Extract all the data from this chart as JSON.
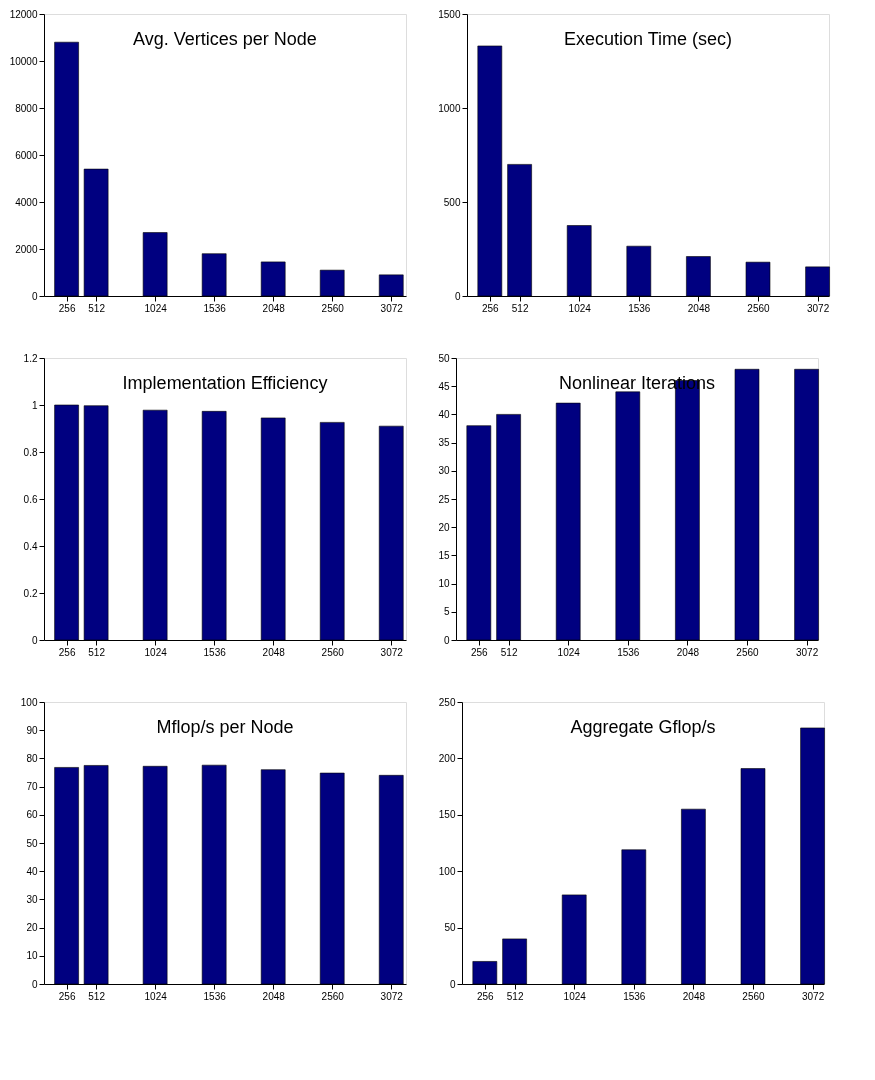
{
  "chart_data": [
    {
      "type": "bar",
      "title": "Avg. Vertices per Node",
      "x": [
        256,
        512,
        1024,
        1536,
        2048,
        2560,
        3072
      ],
      "values": [
        10800,
        5400,
        2700,
        1800,
        1450,
        1100,
        900
      ],
      "color": "#000080",
      "xlim": [
        60,
        3200
      ],
      "xticks": [
        256,
        512,
        1024,
        1536,
        2048,
        2560,
        3072
      ],
      "ylim": [
        0,
        12000
      ],
      "yticks": [
        0,
        2000,
        4000,
        6000,
        8000,
        10000,
        12000
      ],
      "grid": false
    },
    {
      "type": "bar",
      "title": "Execution Time (sec)",
      "x": [
        256,
        512,
        1024,
        1536,
        2048,
        2560,
        3072
      ],
      "values": [
        1330,
        700,
        375,
        265,
        210,
        180,
        155
      ],
      "color": "#000080",
      "xlim": [
        60,
        3170
      ],
      "xticks": [
        256,
        512,
        1024,
        1536,
        2048,
        2560,
        3072
      ],
      "ylim": [
        0,
        1500
      ],
      "yticks": [
        0,
        500,
        1000,
        1500
      ],
      "grid": false
    },
    {
      "type": "bar",
      "title": "Implementation Efficiency",
      "x": [
        256,
        512,
        1024,
        1536,
        2048,
        2560,
        3072
      ],
      "values": [
        1.0,
        0.997,
        0.978,
        0.973,
        0.945,
        0.926,
        0.91
      ],
      "color": "#000080",
      "xlim": [
        60,
        3200
      ],
      "xticks": [
        256,
        512,
        1024,
        1536,
        2048,
        2560,
        3072
      ],
      "ylim": [
        0,
        1.2
      ],
      "yticks": [
        0,
        0.2,
        0.4,
        0.6,
        0.8,
        1,
        1.2
      ],
      "grid": false
    },
    {
      "type": "bar",
      "title": "Nonlinear Iterations",
      "x": [
        256,
        512,
        1024,
        1536,
        2048,
        2560,
        3072
      ],
      "values": [
        38,
        40,
        42,
        44,
        46,
        48,
        48
      ],
      "color": "#000080",
      "xlim": [
        60,
        3170
      ],
      "xticks": [
        256,
        512,
        1024,
        1536,
        2048,
        2560,
        3072
      ],
      "ylim": [
        0,
        50
      ],
      "yticks": [
        0,
        5,
        10,
        15,
        20,
        25,
        30,
        35,
        40,
        45,
        50
      ],
      "grid": false
    },
    {
      "type": "bar",
      "title": "Mflop/s per Node",
      "x": [
        256,
        512,
        1024,
        1536,
        2048,
        2560,
        3072
      ],
      "values": [
        76.8,
        77.5,
        77.2,
        77.6,
        76,
        74.8,
        74
      ],
      "color": "#000080",
      "xlim": [
        60,
        3200
      ],
      "xticks": [
        256,
        512,
        1024,
        1536,
        2048,
        2560,
        3072
      ],
      "ylim": [
        0,
        100
      ],
      "yticks": [
        0,
        10,
        20,
        30,
        40,
        50,
        60,
        70,
        80,
        90,
        100
      ],
      "grid": false
    },
    {
      "type": "bar",
      "title": "Aggregate Gflop/s",
      "x": [
        256,
        512,
        1024,
        1536,
        2048,
        2560,
        3072
      ],
      "values": [
        20,
        40,
        79,
        119,
        155,
        191,
        227
      ],
      "color": "#000080",
      "xlim": [
        60,
        3170
      ],
      "xticks": [
        256,
        512,
        1024,
        1536,
        2048,
        2560,
        3072
      ],
      "ylim": [
        0,
        250
      ],
      "yticks": [
        0,
        50,
        100,
        150,
        200,
        250
      ],
      "grid": false
    }
  ]
}
